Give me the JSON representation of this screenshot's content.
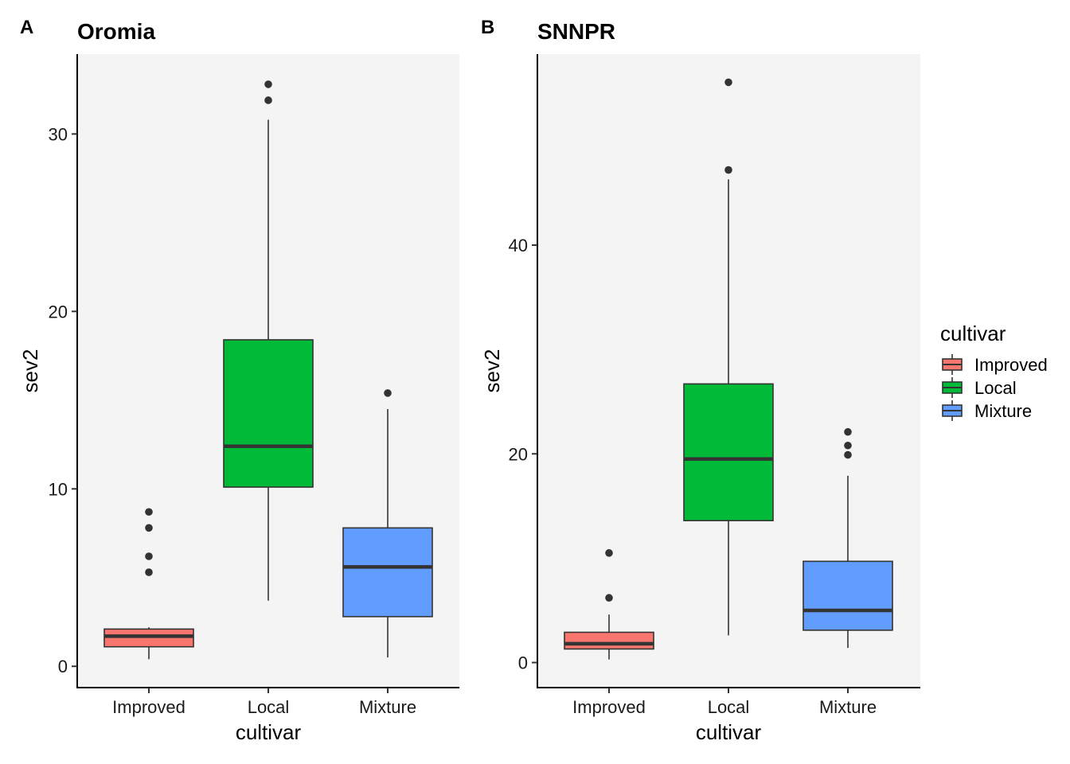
{
  "chart_data": [
    {
      "type": "box",
      "panel_tag": "A",
      "title": "Oromia",
      "xlabel": "cultivar",
      "ylabel": "sev2",
      "ylim": [
        -1.2,
        34.5
      ],
      "yticks": [
        0,
        10,
        20,
        30
      ],
      "grid": false,
      "categories": [
        "Improved",
        "Local",
        "Mixture"
      ],
      "boxes": [
        {
          "category": "Improved",
          "lower_whisker": 0.4,
          "q1": 1.1,
          "median": 1.7,
          "q3": 2.1,
          "upper_whisker": 2.2,
          "outliers": [
            5.3,
            6.2,
            7.8,
            8.7
          ]
        },
        {
          "category": "Local",
          "lower_whisker": 3.7,
          "q1": 10.1,
          "median": 12.4,
          "q3": 18.4,
          "upper_whisker": 30.8,
          "outliers": [
            31.9,
            32.8
          ]
        },
        {
          "category": "Mixture",
          "lower_whisker": 0.5,
          "q1": 2.8,
          "median": 5.6,
          "q3": 7.8,
          "upper_whisker": 14.5,
          "outliers": [
            15.4
          ]
        }
      ]
    },
    {
      "type": "box",
      "panel_tag": "B",
      "title": "SNNPR",
      "xlabel": "cultivar",
      "ylabel": "sev2",
      "ylim": [
        -2.4,
        58.3
      ],
      "yticks": [
        0,
        20,
        40
      ],
      "grid": false,
      "categories": [
        "Improved",
        "Local",
        "Mixture"
      ],
      "boxes": [
        {
          "category": "Improved",
          "lower_whisker": 0.3,
          "q1": 1.3,
          "median": 1.8,
          "q3": 2.9,
          "upper_whisker": 4.6,
          "outliers": [
            6.2,
            10.5
          ]
        },
        {
          "category": "Local",
          "lower_whisker": 2.6,
          "q1": 13.6,
          "median": 19.5,
          "q3": 26.7,
          "upper_whisker": 46.3,
          "outliers": [
            47.2,
            55.6
          ]
        },
        {
          "category": "Mixture",
          "lower_whisker": 1.4,
          "q1": 3.1,
          "median": 5.0,
          "q3": 9.7,
          "upper_whisker": 17.9,
          "outliers": [
            19.9,
            20.8,
            22.1
          ]
        }
      ]
    }
  ],
  "legend": {
    "title": "cultivar",
    "items": [
      {
        "label": "Improved",
        "color": "#F8766D"
      },
      {
        "label": "Local",
        "color": "#00BA38"
      },
      {
        "label": "Mixture",
        "color": "#619CFF"
      }
    ],
    "placement": "right"
  },
  "colors": {
    "panel_background": "#F4F4F4",
    "box_line": "#333333",
    "Improved": "#F8766D",
    "Local": "#00BA38",
    "Mixture": "#619CFF"
  }
}
